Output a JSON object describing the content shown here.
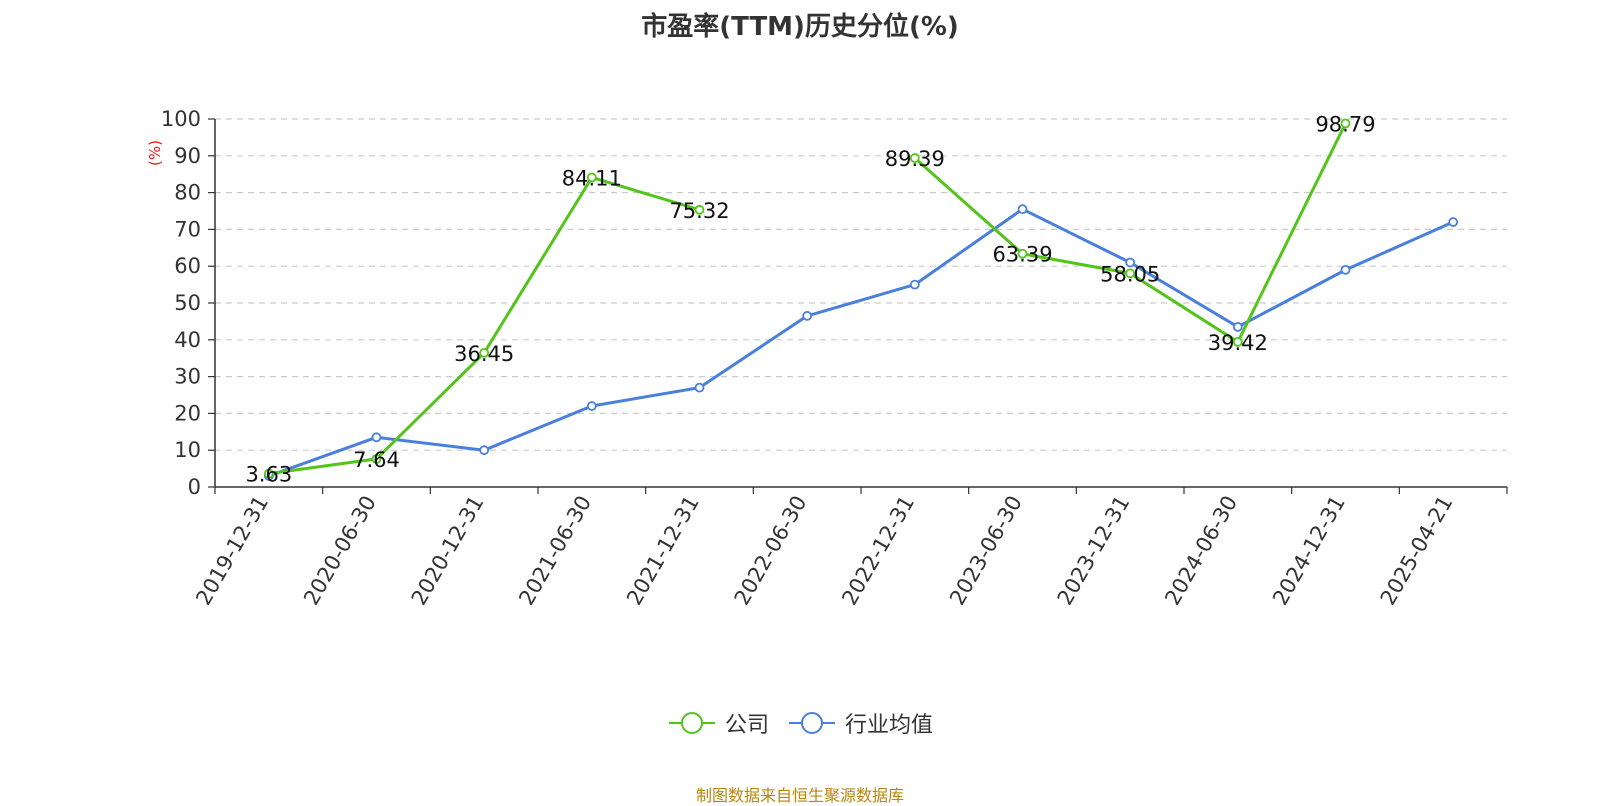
{
  "chart_data": {
    "type": "line",
    "title": "市盈率(TTM)历史分位(%)",
    "ylabel": "(%)",
    "ylim": [
      0,
      100
    ],
    "yticks": [
      "0",
      "10",
      "20",
      "30",
      "40",
      "50",
      "60",
      "70",
      "80",
      "90",
      "100"
    ],
    "categories": [
      "2019-12-31",
      "2020-06-30",
      "2020-12-31",
      "2021-06-30",
      "2021-12-31",
      "2022-06-30",
      "2022-12-31",
      "2023-06-30",
      "2023-12-31",
      "2024-06-30",
      "2024-12-31",
      "2025-04-21"
    ],
    "series": [
      {
        "name": "公司",
        "color": "#52c41a",
        "values": [
          3.63,
          7.64,
          36.45,
          84.11,
          75.32,
          null,
          89.39,
          63.39,
          58.05,
          39.42,
          98.79,
          null
        ],
        "labels": [
          "3.63",
          "7.64",
          "36.45",
          "84.11",
          "75.32",
          "",
          "89.39",
          "63.39",
          "58.05",
          "39.42",
          "98.79",
          ""
        ]
      },
      {
        "name": "行业均值",
        "color": "#4a7fdb",
        "values": [
          3,
          13.5,
          10,
          22,
          27,
          46.5,
          55,
          75.5,
          61,
          43.5,
          59,
          72
        ]
      }
    ],
    "grid": true,
    "legend_position": "bottom-center"
  },
  "source_note": "制图数据来自恒生聚源数据库"
}
